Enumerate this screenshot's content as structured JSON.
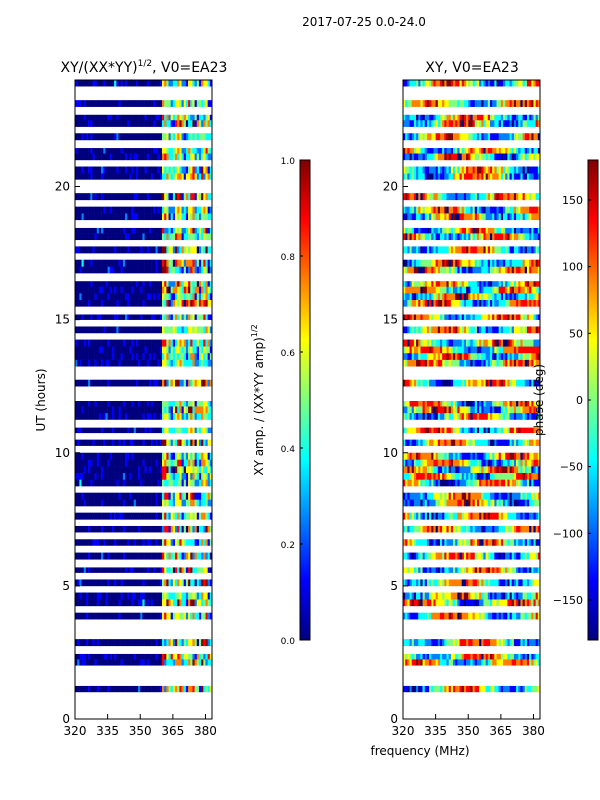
{
  "suptitle": "2017-07-25 0.0-24.0",
  "xlabel": "frequency (MHz)",
  "colors": {
    "jet": [
      "#00007f",
      "#0000ff",
      "#007fff",
      "#00ffff",
      "#7fff7f",
      "#ffff00",
      "#ff7f00",
      "#ff0000",
      "#7f0000"
    ],
    "gap": "#ffffff"
  },
  "chart_data": [
    {
      "type": "heatmap",
      "title": "XY/(XX*YY)",
      "title_exponent": "1/2",
      "title_suffix": ", V0=EA23",
      "xlabel": "",
      "ylabel": "UT (hours)",
      "xlim": [
        320,
        383
      ],
      "ylim": [
        0,
        24
      ],
      "xticks": [
        "320",
        "335",
        "350",
        "365",
        "380"
      ],
      "xtick_values": [
        320,
        335,
        350,
        365,
        380
      ],
      "yticks": [
        "0",
        "5",
        "10",
        "15",
        "20"
      ],
      "ytick_values": [
        0,
        5,
        10,
        15,
        20
      ],
      "pattern": "mostly low (dark blue) below 360 MHz; bright banded columns 360-383 MHz",
      "colorbar": {
        "label": "XY amp. / (XX*YY amp)",
        "label_exponent": "1/2",
        "range": [
          0.0,
          1.0
        ],
        "ticks": [
          "0.0",
          "0.2",
          "0.4",
          "0.6",
          "0.8",
          "1.0"
        ],
        "tick_values": [
          0.0,
          0.2,
          0.4,
          0.6,
          0.8,
          1.0
        ]
      }
    },
    {
      "type": "heatmap",
      "title": "XY, V0=EA23",
      "xlabel": "frequency (MHz)",
      "ylabel": "",
      "xlim": [
        320,
        383
      ],
      "ylim": [
        0,
        24
      ],
      "xticks": [
        "320",
        "335",
        "350",
        "365",
        "380"
      ],
      "xtick_values": [
        320,
        335,
        350,
        365,
        380
      ],
      "yticks": [
        "0",
        "5",
        "10",
        "15",
        "20"
      ],
      "ytick_values": [
        0,
        5,
        10,
        15,
        20
      ],
      "pattern": "phase noise spanning full colour range with frequency-dependent streaks",
      "colorbar": {
        "label": "phase (deg)",
        "range": [
          -180,
          180
        ],
        "ticks": [
          "−150",
          "−100",
          "−50",
          "0",
          "50",
          "100",
          "150"
        ],
        "tick_values": [
          -150,
          -100,
          -50,
          0,
          50,
          100,
          150
        ]
      }
    }
  ],
  "gaps_hours": [
    0.05,
    0.3,
    0.6,
    0.95,
    1.3,
    1.65,
    1.95,
    2.5,
    3.15,
    3.4,
    3.55,
    4.05,
    4.9,
    5.3,
    5.75,
    6.45,
    6.95,
    7.35,
    7.9,
    8.6,
    10.2,
    10.55,
    11.0,
    12.0,
    12.25,
    12.8,
    13.15,
    14.4,
    14.8,
    15.25,
    16.5,
    17.4,
    17.85,
    18.5,
    19.3,
    19.95,
    20.2,
    20.85,
    21.5,
    22.1,
    22.75,
    23.3,
    23.7
  ]
}
